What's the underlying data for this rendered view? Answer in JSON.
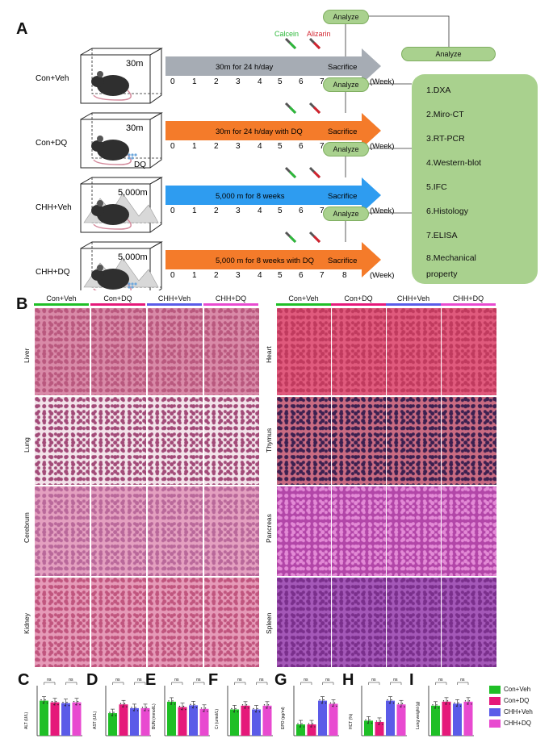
{
  "panelA": {
    "letter": "A",
    "groups": [
      {
        "label": "Con+Veh",
        "chamber": "30m",
        "arrow_text": "30m for 24 h/day",
        "sacrifice": "Sacrifice",
        "color": "#a6acb4",
        "dq": ""
      },
      {
        "label": "Con+DQ",
        "chamber": "30m",
        "arrow_text": "30m for 24 h/day with DQ",
        "sacrifice": "Sacrifice",
        "color": "#f47b2a",
        "dq": "DQ"
      },
      {
        "label": "CHH+Veh",
        "chamber": "5,000m",
        "arrow_text": "5,000 m for 8 weeks",
        "sacrifice": "Sacrifice",
        "color": "#2e9cf0",
        "dq": ""
      },
      {
        "label": "CHH+DQ",
        "chamber": "5,000m",
        "arrow_text": "5,000 m for 8 weeks with DQ",
        "sacrifice": "Sacrifice",
        "color": "#f47b2a",
        "dq": "DQ"
      }
    ],
    "ticks": [
      "0",
      "1",
      "2",
      "3",
      "4",
      "5",
      "6",
      "7",
      "8"
    ],
    "week_label": "(Week)",
    "calcein_label": "Calcein",
    "alizarin_label": "Alizarin",
    "analyze_label": "Analyze",
    "methods": [
      "1.DXA",
      "2.Miro-CT",
      "3.RT-PCR",
      "4.Western-blot",
      "5.IFC",
      "6.Histology",
      "7.ELISA",
      "8.Mechanical",
      "property"
    ]
  },
  "panelB": {
    "letter": "B",
    "columns": [
      "Con+Veh",
      "Con+DQ",
      "CHH+Veh",
      "CHH+DQ"
    ],
    "column_colors": [
      "#1fbf26",
      "#e5197a",
      "#5b5be8",
      "#e84ad0"
    ],
    "left_rows": [
      "Liver",
      "Lung",
      "Cerebrum",
      "Kidney"
    ],
    "right_rows": [
      "Heart",
      "Thymus",
      "Pancreas",
      "Spleen"
    ]
  },
  "panelC_I": {
    "charts": [
      {
        "letter": "C",
        "ylabel": "ALT (U/L)",
        "values": [
          42,
          40,
          39,
          40
        ],
        "ylim": [
          0,
          60
        ],
        "sig": [
          "ns",
          "ns"
        ]
      },
      {
        "letter": "D",
        "ylabel": "AST (U/L)",
        "values": [
          148,
          155,
          152,
          152
        ],
        "ylim": [
          130,
          170
        ],
        "sig": [
          "ns",
          "ns"
        ]
      },
      {
        "letter": "E",
        "ylabel": "BUN (mmol/L)",
        "values": [
          9.5,
          8,
          8.5,
          7.5
        ],
        "ylim": [
          0,
          14
        ],
        "sig": [
          "ns",
          "ns"
        ]
      },
      {
        "letter": "F",
        "ylabel": "Cr (umol/L)",
        "values": [
          21,
          24,
          21,
          24
        ],
        "ylim": [
          0,
          40
        ],
        "sig": [
          "ns",
          "ns"
        ]
      },
      {
        "letter": "G",
        "ylabel": "EPO (pg/ml)",
        "values": [
          180,
          180,
          560,
          510
        ],
        "ylim": [
          0,
          800
        ],
        "sig": [
          "ns",
          "ns"
        ]
      },
      {
        "letter": "H",
        "ylabel": "HCT (%)",
        "values": [
          42,
          41,
          58,
          55
        ],
        "ylim": [
          30,
          70
        ],
        "sig": [
          "ns",
          "ns"
        ]
      },
      {
        "letter": "I",
        "ylabel": "Lung weight (g)",
        "values": [
          0.15,
          0.17,
          0.16,
          0.17
        ],
        "ylim": [
          0,
          0.25
        ],
        "sig": [
          "ns",
          "ns"
        ]
      }
    ],
    "bar_colors": [
      "#1fbf26",
      "#e5197a",
      "#5b5be8",
      "#e84ad0"
    ],
    "legend": [
      "Con+Veh",
      "Con+DQ",
      "CHH+Veh",
      "CHH+DQ"
    ]
  }
}
